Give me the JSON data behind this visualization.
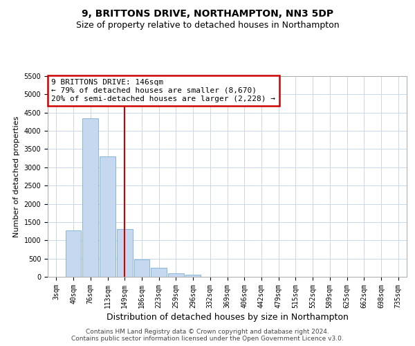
{
  "title": "9, BRITTONS DRIVE, NORTHAMPTON, NN3 5DP",
  "subtitle": "Size of property relative to detached houses in Northampton",
  "xlabel": "Distribution of detached houses by size in Northampton",
  "ylabel": "Number of detached properties",
  "footer_line1": "Contains HM Land Registry data © Crown copyright and database right 2024.",
  "footer_line2": "Contains public sector information licensed under the Open Government Licence v3.0.",
  "bar_labels": [
    "3sqm",
    "40sqm",
    "76sqm",
    "113sqm",
    "149sqm",
    "186sqm",
    "223sqm",
    "259sqm",
    "296sqm",
    "332sqm",
    "369sqm",
    "406sqm",
    "442sqm",
    "479sqm",
    "515sqm",
    "552sqm",
    "589sqm",
    "625sqm",
    "662sqm",
    "698sqm",
    "735sqm"
  ],
  "bar_values": [
    0,
    1270,
    4350,
    3300,
    1300,
    480,
    240,
    100,
    65,
    0,
    0,
    0,
    0,
    0,
    0,
    0,
    0,
    0,
    0,
    0,
    0
  ],
  "bar_color": "#c5d8ef",
  "bar_edge_color": "#7aafd4",
  "vline_x_idx": 4,
  "vline_color": "#cc0000",
  "annotation_line1": "9 BRITTONS DRIVE: 146sqm",
  "annotation_line2": "← 79% of detached houses are smaller (8,670)",
  "annotation_line3": "20% of semi-detached houses are larger (2,228) →",
  "annotation_box_edgecolor": "#cc0000",
  "ylim_max": 5500,
  "ytick_step": 500,
  "background_color": "#ffffff",
  "grid_color": "#c8d8ea",
  "title_fontsize": 10,
  "subtitle_fontsize": 9,
  "xlabel_fontsize": 9,
  "ylabel_fontsize": 8,
  "tick_fontsize": 7,
  "footer_fontsize": 6.5,
  "annotation_fontsize": 8
}
